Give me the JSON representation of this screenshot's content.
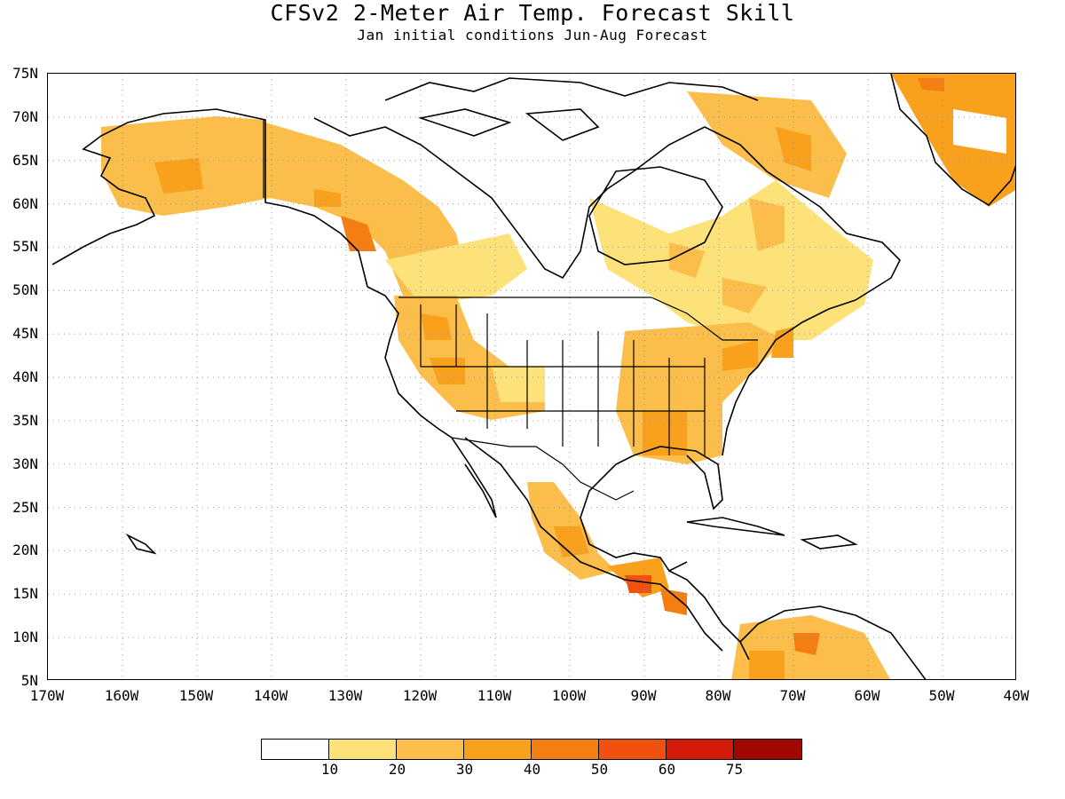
{
  "title": "CFSv2 2-Meter Air Temp. Forecast Skill",
  "subtitle": "Jan initial conditions   Jun-Aug Forecast",
  "lat_labels": [
    "75N",
    "70N",
    "65N",
    "60N",
    "55N",
    "50N",
    "45N",
    "40N",
    "35N",
    "30N",
    "25N",
    "20N",
    "15N",
    "10N",
    "5N"
  ],
  "lon_labels": [
    "170W",
    "160W",
    "150W",
    "140W",
    "130W",
    "120W",
    "110W",
    "100W",
    "90W",
    "80W",
    "70W",
    "60W",
    "50W",
    "40W"
  ],
  "colorbar": {
    "colors": [
      "#ffffff",
      "#fde27a",
      "#fbbe4a",
      "#f9a01c",
      "#f57e12",
      "#f0510e",
      "#d41a08",
      "#a00802"
    ],
    "labels": [
      "10",
      "20",
      "30",
      "40",
      "50",
      "60",
      "75"
    ]
  },
  "map": {
    "lon_range": [
      -170,
      -40
    ],
    "lat_range": [
      5,
      75
    ],
    "land_line_color": "#000000",
    "grid": "dotted"
  }
}
